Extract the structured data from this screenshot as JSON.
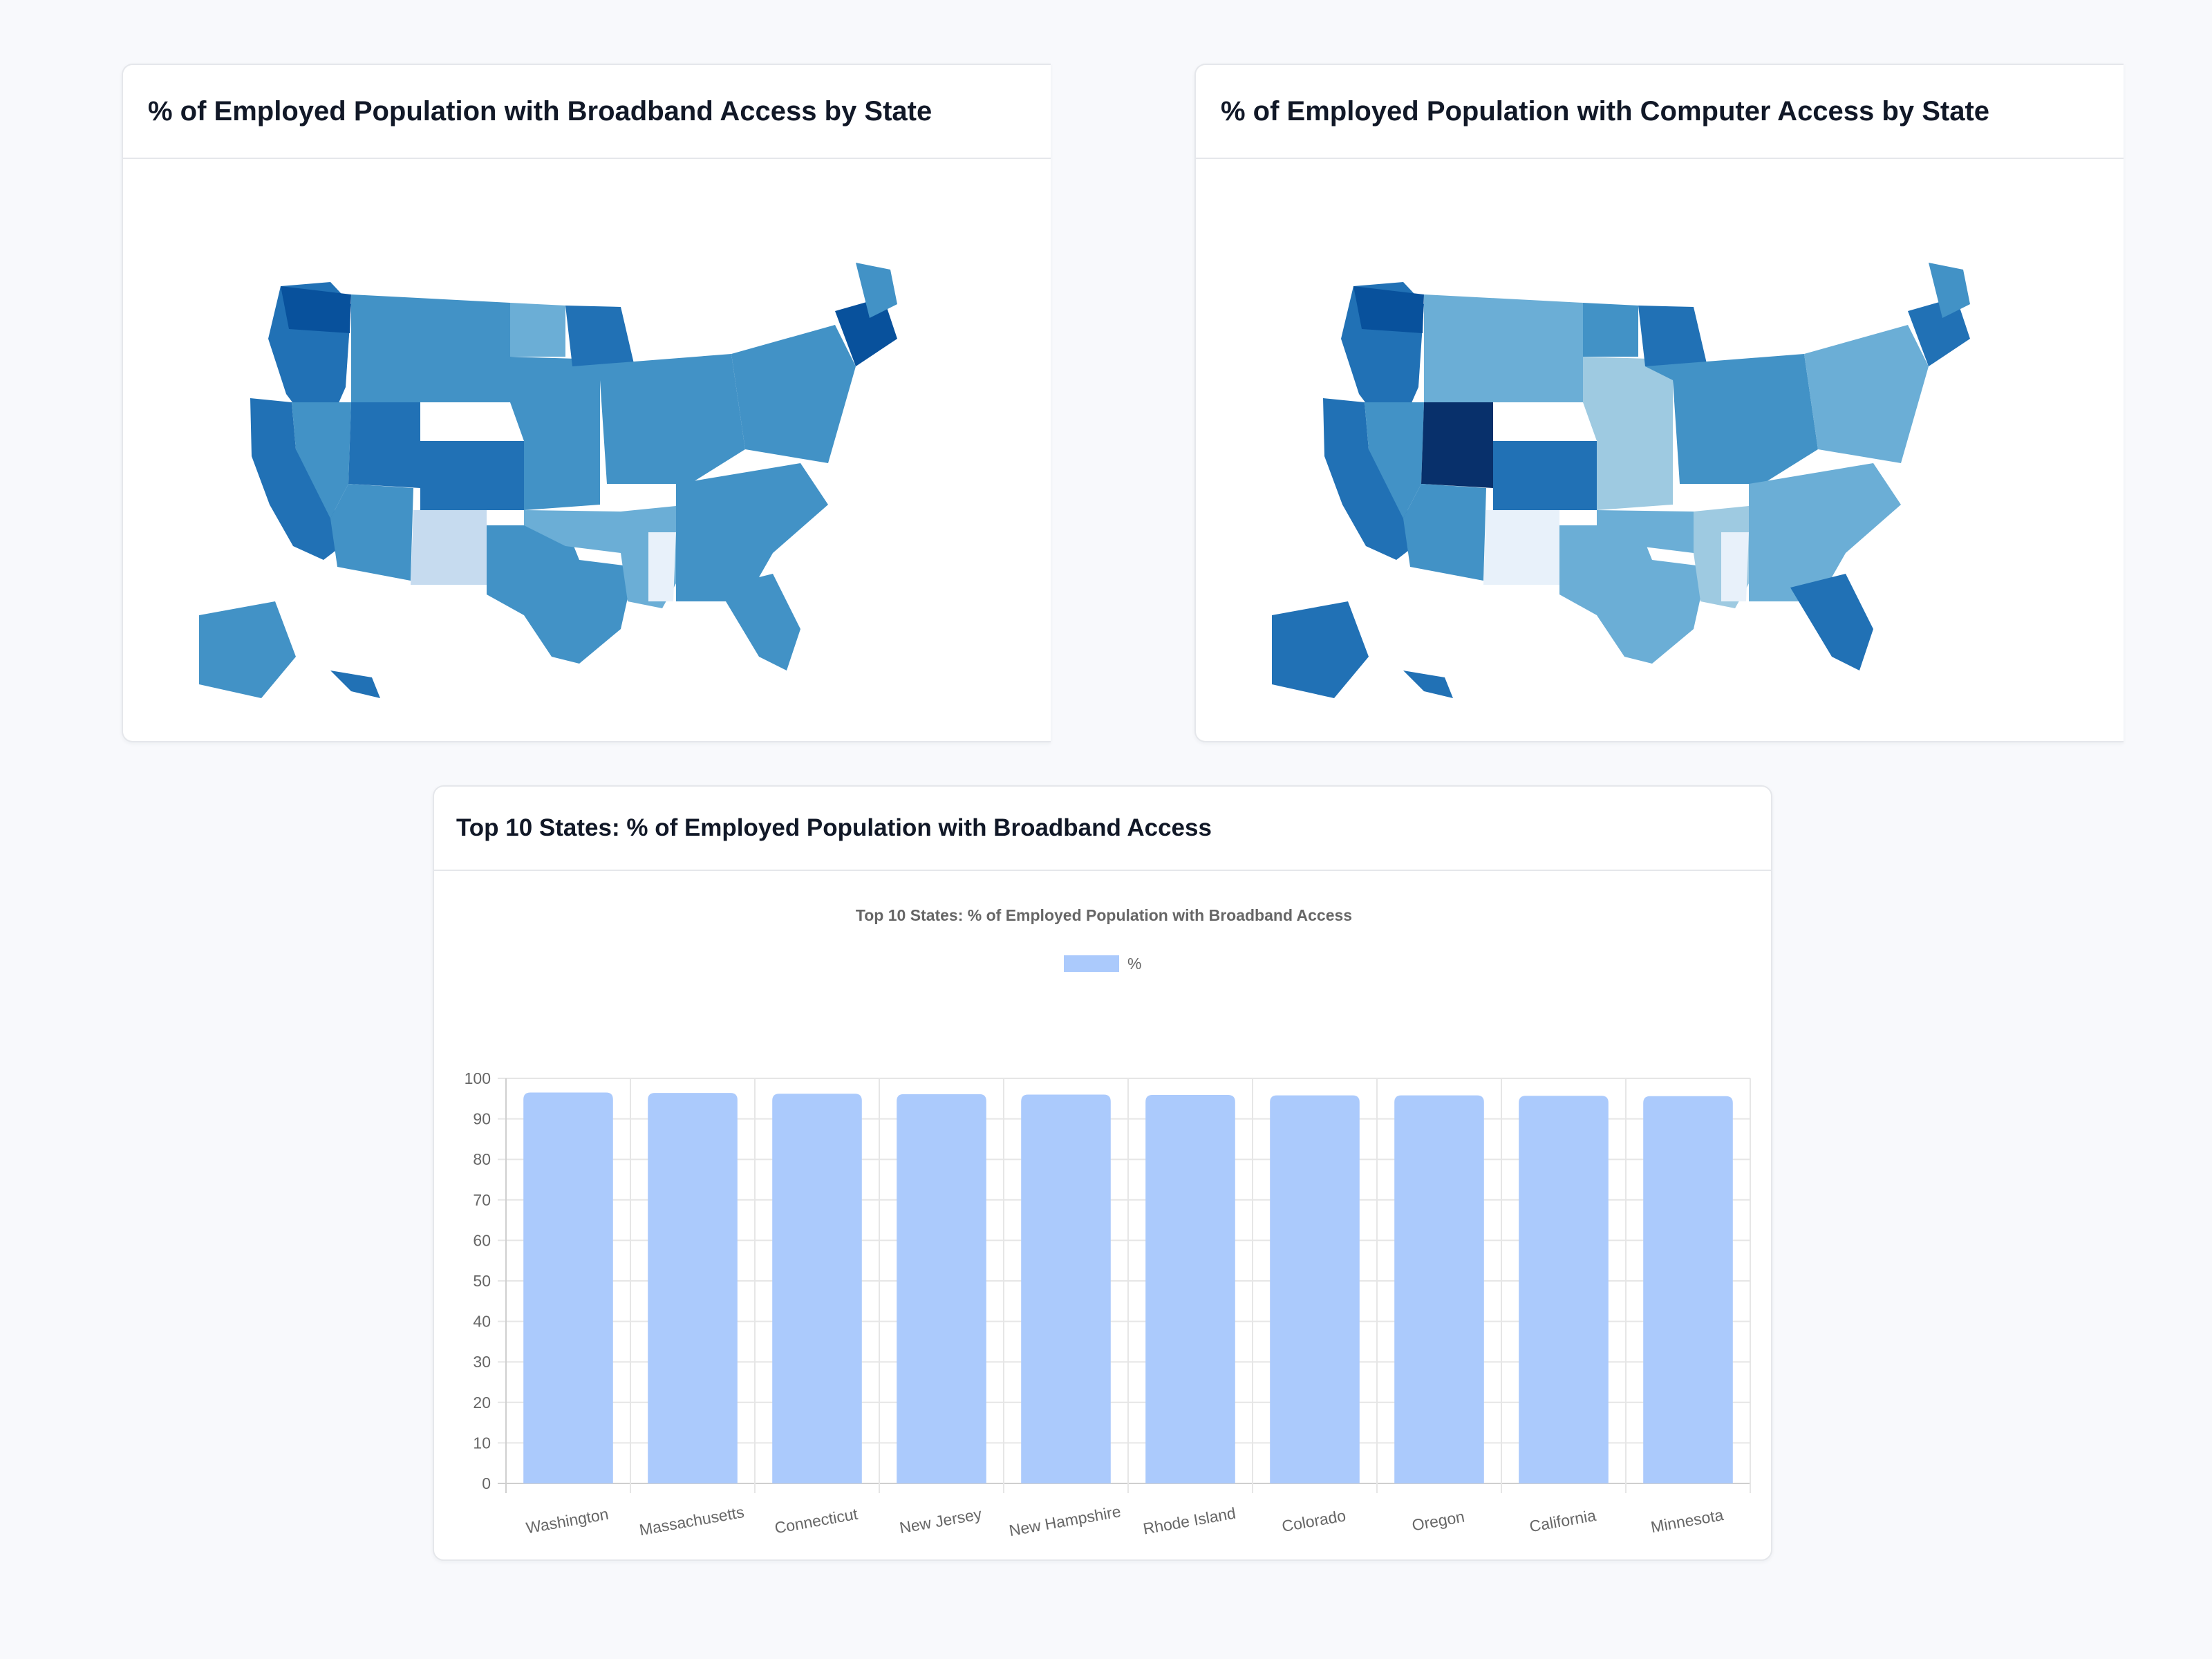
{
  "colors": {
    "page_bg": "#f8f9fc",
    "bar_fill": "#abcafc",
    "map_scale": [
      "#e8f1fa",
      "#c6dbef",
      "#9ecae1",
      "#6baed6",
      "#4292c6",
      "#2171b5",
      "#08519c",
      "#08306b"
    ]
  },
  "broadband_map": {
    "title": "% of Employed Population with Broadband Access by State"
  },
  "computer_map": {
    "title": "% of Employed Population with Computer Access by State"
  },
  "top10_card": {
    "title": "Top 10 States: % of Employed Population with Broadband Access"
  },
  "chart_data": {
    "type": "bar",
    "title": "Top 10 States: % of Employed Population with Broadband Access",
    "categories": [
      "Washington",
      "Massachusetts",
      "Connecticut",
      "New Jersey",
      "New Hampshire",
      "Rhode Island",
      "Colorado",
      "Oregon",
      "California",
      "Minnesota"
    ],
    "series": [
      {
        "name": "%",
        "values": [
          96.5,
          96.4,
          96.2,
          96.1,
          96.0,
          95.9,
          95.8,
          95.8,
          95.7,
          95.6
        ]
      }
    ],
    "ylim": [
      0,
      100
    ],
    "yticks": [
      0,
      10,
      20,
      30,
      40,
      50,
      60,
      70,
      80,
      90,
      100
    ],
    "grid": true,
    "legend": "top-center",
    "xlabel": "",
    "ylabel": ""
  }
}
